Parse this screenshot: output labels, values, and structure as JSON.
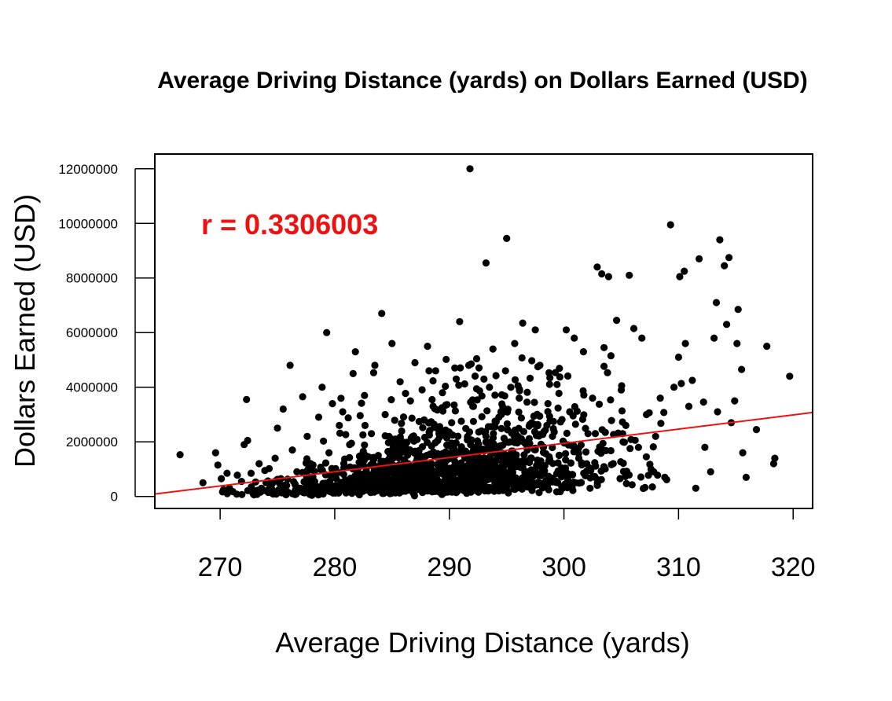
{
  "chart_data": {
    "type": "scatter",
    "title": "Average Driving Distance (yards) on Dollars Earned (USD)",
    "xlabel": "Average Driving Distance (yards)",
    "ylabel": "Dollars Earned (USD)",
    "xlim": [
      264.3,
      321.7
    ],
    "ylim": [
      -440000,
      12540000
    ],
    "xticks": [
      270,
      280,
      290,
      300,
      310,
      320
    ],
    "xtick_labels": [
      "270",
      "280",
      "290",
      "300",
      "310",
      "320"
    ],
    "yticks": [
      0,
      2000000,
      4000000,
      6000000,
      8000000,
      10000000,
      12000000
    ],
    "ytick_labels": [
      "0",
      "2000000",
      "4000000",
      "6000000",
      "8000000",
      "10000000",
      "12000000"
    ],
    "grid": false,
    "annotation": {
      "text": "r = 0.3306003",
      "color": "#ee1111"
    },
    "point_color": "#000000",
    "fit_line": {
      "color": "#ee1111",
      "slope": 52000,
      "intercept": -13655000
    },
    "points": [
      {
        "x": 266.5,
        "y": 1530000
      },
      {
        "x": 268.5,
        "y": 500000
      },
      {
        "x": 269.6,
        "y": 1600000
      },
      {
        "x": 269.8,
        "y": 1150000
      },
      {
        "x": 270.1,
        "y": 650000
      },
      {
        "x": 270.3,
        "y": 250000
      },
      {
        "x": 270.6,
        "y": 850000
      },
      {
        "x": 271.1,
        "y": 180000
      },
      {
        "x": 271.5,
        "y": 780000
      },
      {
        "x": 271.9,
        "y": 70000
      },
      {
        "x": 272.1,
        "y": 1900000
      },
      {
        "x": 272.4,
        "y": 2050000
      },
      {
        "x": 272.3,
        "y": 3550000
      },
      {
        "x": 272.7,
        "y": 850000
      },
      {
        "x": 273.1,
        "y": 530000
      },
      {
        "x": 273.4,
        "y": 1200000
      },
      {
        "x": 273.6,
        "y": 300000
      },
      {
        "x": 273.9,
        "y": 950000
      },
      {
        "x": 274.2,
        "y": 150000
      },
      {
        "x": 274.8,
        "y": 1400000
      },
      {
        "x": 275.0,
        "y": 2500000
      },
      {
        "x": 275.3,
        "y": 650000
      },
      {
        "x": 275.5,
        "y": 3200000
      },
      {
        "x": 275.8,
        "y": 400000
      },
      {
        "x": 276.1,
        "y": 4800000
      },
      {
        "x": 276.3,
        "y": 1700000
      },
      {
        "x": 276.7,
        "y": 900000
      },
      {
        "x": 277.0,
        "y": 300000
      },
      {
        "x": 277.2,
        "y": 3650000
      },
      {
        "x": 277.6,
        "y": 2200000
      },
      {
        "x": 277.9,
        "y": 1200000
      },
      {
        "x": 278.2,
        "y": 500000
      },
      {
        "x": 278.6,
        "y": 2900000
      },
      {
        "x": 278.9,
        "y": 4000000
      },
      {
        "x": 279.3,
        "y": 6000000
      },
      {
        "x": 279.5,
        "y": 1600000
      },
      {
        "x": 279.8,
        "y": 3400000
      },
      {
        "x": 280.1,
        "y": 800000
      },
      {
        "x": 280.4,
        "y": 2600000
      },
      {
        "x": 280.7,
        "y": 3100000
      },
      {
        "x": 281.0,
        "y": 200000
      },
      {
        "x": 281.3,
        "y": 1900000
      },
      {
        "x": 281.6,
        "y": 4500000
      },
      {
        "x": 281.8,
        "y": 5300000
      },
      {
        "x": 282.2,
        "y": 1100000
      },
      {
        "x": 282.6,
        "y": 3700000
      },
      {
        "x": 282.9,
        "y": 600000
      },
      {
        "x": 283.2,
        "y": 2300000
      },
      {
        "x": 283.5,
        "y": 4800000
      },
      {
        "x": 283.8,
        "y": 1500000
      },
      {
        "x": 284.1,
        "y": 6700000
      },
      {
        "x": 284.4,
        "y": 3000000
      },
      {
        "x": 284.8,
        "y": 900000
      },
      {
        "x": 285.0,
        "y": 5600000
      },
      {
        "x": 285.3,
        "y": 2100000
      },
      {
        "x": 285.7,
        "y": 4200000
      },
      {
        "x": 286.0,
        "y": 400000
      },
      {
        "x": 286.3,
        "y": 1700000
      },
      {
        "x": 286.6,
        "y": 3500000
      },
      {
        "x": 287.0,
        "y": 4900000
      },
      {
        "x": 287.4,
        "y": 1200000
      },
      {
        "x": 287.8,
        "y": 2800000
      },
      {
        "x": 288.1,
        "y": 5500000
      },
      {
        "x": 288.5,
        "y": 700000
      },
      {
        "x": 288.8,
        "y": 4600000
      },
      {
        "x": 289.1,
        "y": 2300000
      },
      {
        "x": 289.4,
        "y": 3800000
      },
      {
        "x": 289.8,
        "y": 1000000
      },
      {
        "x": 290.2,
        "y": 2700000
      },
      {
        "x": 290.6,
        "y": 4300000
      },
      {
        "x": 290.9,
        "y": 6400000
      },
      {
        "x": 291.3,
        "y": 1500000
      },
      {
        "x": 291.7,
        "y": 4800000
      },
      {
        "x": 291.8,
        "y": 12000000
      },
      {
        "x": 292.1,
        "y": 3300000
      },
      {
        "x": 292.4,
        "y": 800000
      },
      {
        "x": 292.8,
        "y": 2400000
      },
      {
        "x": 293.2,
        "y": 8550000
      },
      {
        "x": 293.5,
        "y": 4000000
      },
      {
        "x": 293.8,
        "y": 5400000
      },
      {
        "x": 294.1,
        "y": 1300000
      },
      {
        "x": 294.5,
        "y": 3100000
      },
      {
        "x": 294.9,
        "y": 4600000
      },
      {
        "x": 295.0,
        "y": 9450000
      },
      {
        "x": 295.3,
        "y": 2000000
      },
      {
        "x": 295.7,
        "y": 5600000
      },
      {
        "x": 296.1,
        "y": 3600000
      },
      {
        "x": 296.4,
        "y": 6350000
      },
      {
        "x": 296.8,
        "y": 900000
      },
      {
        "x": 297.2,
        "y": 2700000
      },
      {
        "x": 297.5,
        "y": 6100000
      },
      {
        "x": 297.9,
        "y": 4800000
      },
      {
        "x": 298.2,
        "y": 1800000
      },
      {
        "x": 298.6,
        "y": 3400000
      },
      {
        "x": 299.0,
        "y": 2200000
      },
      {
        "x": 299.4,
        "y": 4100000
      },
      {
        "x": 299.8,
        "y": 800000
      },
      {
        "x": 300.2,
        "y": 6100000
      },
      {
        "x": 300.5,
        "y": 3100000
      },
      {
        "x": 300.9,
        "y": 5800000
      },
      {
        "x": 301.3,
        "y": 1400000
      },
      {
        "x": 301.7,
        "y": 5300000
      },
      {
        "x": 302.1,
        "y": 2300000
      },
      {
        "x": 302.5,
        "y": 3600000
      },
      {
        "x": 302.9,
        "y": 8400000
      },
      {
        "x": 303.3,
        "y": 8150000
      },
      {
        "x": 303.5,
        "y": 5450000
      },
      {
        "x": 303.9,
        "y": 8050000
      },
      {
        "x": 304.3,
        "y": 1200000
      },
      {
        "x": 304.6,
        "y": 6450000
      },
      {
        "x": 305.0,
        "y": 3900000
      },
      {
        "x": 305.4,
        "y": 2600000
      },
      {
        "x": 305.7,
        "y": 8100000
      },
      {
        "x": 306.1,
        "y": 6150000
      },
      {
        "x": 306.5,
        "y": 1800000
      },
      {
        "x": 306.8,
        "y": 5800000
      },
      {
        "x": 307.2,
        "y": 3000000
      },
      {
        "x": 307.6,
        "y": 1000000
      },
      {
        "x": 308.0,
        "y": 2200000
      },
      {
        "x": 308.4,
        "y": 3600000
      },
      {
        "x": 308.8,
        "y": 700000
      },
      {
        "x": 309.3,
        "y": 9950000
      },
      {
        "x": 309.6,
        "y": 4000000
      },
      {
        "x": 310.0,
        "y": 5100000
      },
      {
        "x": 310.1,
        "y": 8050000
      },
      {
        "x": 310.5,
        "y": 8250000
      },
      {
        "x": 310.6,
        "y": 5600000
      },
      {
        "x": 310.9,
        "y": 3300000
      },
      {
        "x": 311.2,
        "y": 4250000
      },
      {
        "x": 311.5,
        "y": 300000
      },
      {
        "x": 311.8,
        "y": 8700000
      },
      {
        "x": 312.3,
        "y": 1800000
      },
      {
        "x": 312.8,
        "y": 900000
      },
      {
        "x": 313.1,
        "y": 5800000
      },
      {
        "x": 313.3,
        "y": 7100000
      },
      {
        "x": 313.6,
        "y": 9400000
      },
      {
        "x": 313.4,
        "y": 3100000
      },
      {
        "x": 314.0,
        "y": 8450000
      },
      {
        "x": 314.2,
        "y": 6300000
      },
      {
        "x": 314.4,
        "y": 8750000
      },
      {
        "x": 314.6,
        "y": 2700000
      },
      {
        "x": 314.9,
        "y": 3500000
      },
      {
        "x": 315.1,
        "y": 5600000
      },
      {
        "x": 315.2,
        "y": 6850000
      },
      {
        "x": 315.5,
        "y": 4650000
      },
      {
        "x": 315.6,
        "y": 1600000
      },
      {
        "x": 315.9,
        "y": 700000
      },
      {
        "x": 316.8,
        "y": 2450000
      },
      {
        "x": 317.7,
        "y": 5500000
      },
      {
        "x": 318.3,
        "y": 1200000
      },
      {
        "x": 318.4,
        "y": 1400000
      },
      {
        "x": 319.7,
        "y": 4400000
      }
    ],
    "dense_cloud": {
      "n": 1450,
      "seed": 20240531,
      "x_mean": 289.5,
      "x_sd": 7.5,
      "y_shape": "right-skewed",
      "y_median": 850000
    }
  }
}
